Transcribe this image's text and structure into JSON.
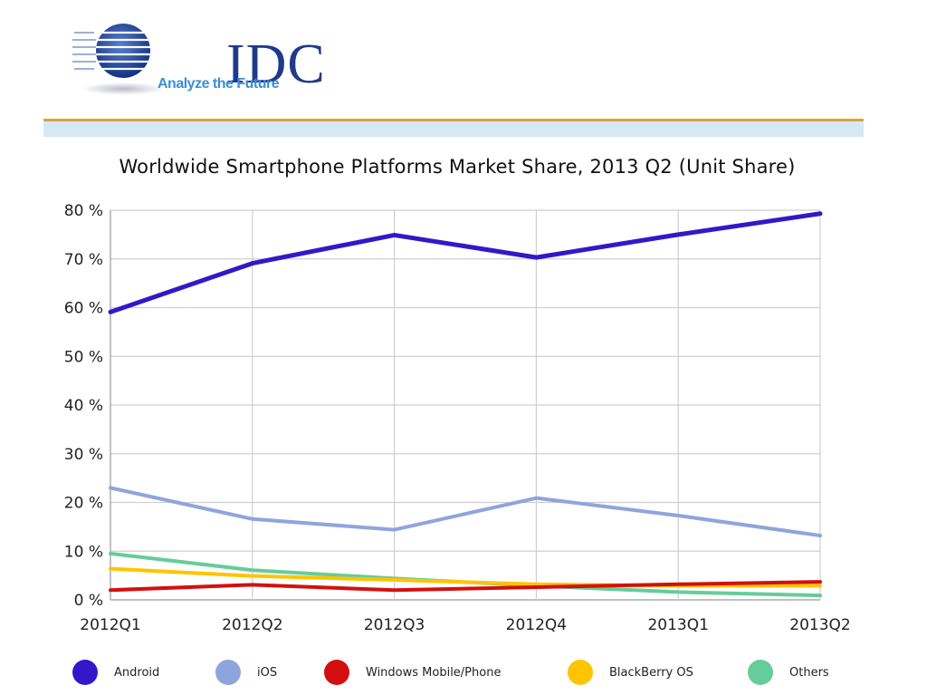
{
  "header": {
    "logo_text": "IDC",
    "logo_tagline": "Analyze the Future",
    "logo_color": "#1f3a8a",
    "tagline_color": "#3a8ed8"
  },
  "chart_data": {
    "type": "line",
    "title": "Worldwide Smartphone Platforms Market Share, 2013 Q2 (Unit Share)",
    "xlabel": "",
    "ylabel": "",
    "categories": [
      "2012Q1",
      "2012Q2",
      "2012Q3",
      "2012Q4",
      "2013Q1",
      "2013Q2"
    ],
    "yticks": [
      "0 %",
      "10 %",
      "20 %",
      "30 %",
      "40 %",
      "50 %",
      "60 %",
      "70 %",
      "80 %"
    ],
    "ylim": [
      0,
      80
    ],
    "grid": true,
    "legend_position": "bottom",
    "series": [
      {
        "name": "Android",
        "color": "#3318c9",
        "values": [
          59.1,
          69.1,
          74.9,
          70.3,
          75.0,
          79.3
        ]
      },
      {
        "name": "iOS",
        "color": "#8ea5dc",
        "values": [
          23.0,
          16.6,
          14.4,
          20.9,
          17.3,
          13.2
        ]
      },
      {
        "name": "Windows Mobile/Phone",
        "color": "#d40f0f",
        "values": [
          2.0,
          3.1,
          2.0,
          2.6,
          3.2,
          3.7
        ]
      },
      {
        "name": "BlackBerry OS",
        "color": "#ffc400",
        "values": [
          6.4,
          4.9,
          4.1,
          3.2,
          2.9,
          2.9
        ]
      },
      {
        "name": "Others",
        "color": "#66cc99",
        "values": [
          9.5,
          6.1,
          4.4,
          2.9,
          1.6,
          0.9
        ]
      }
    ]
  }
}
